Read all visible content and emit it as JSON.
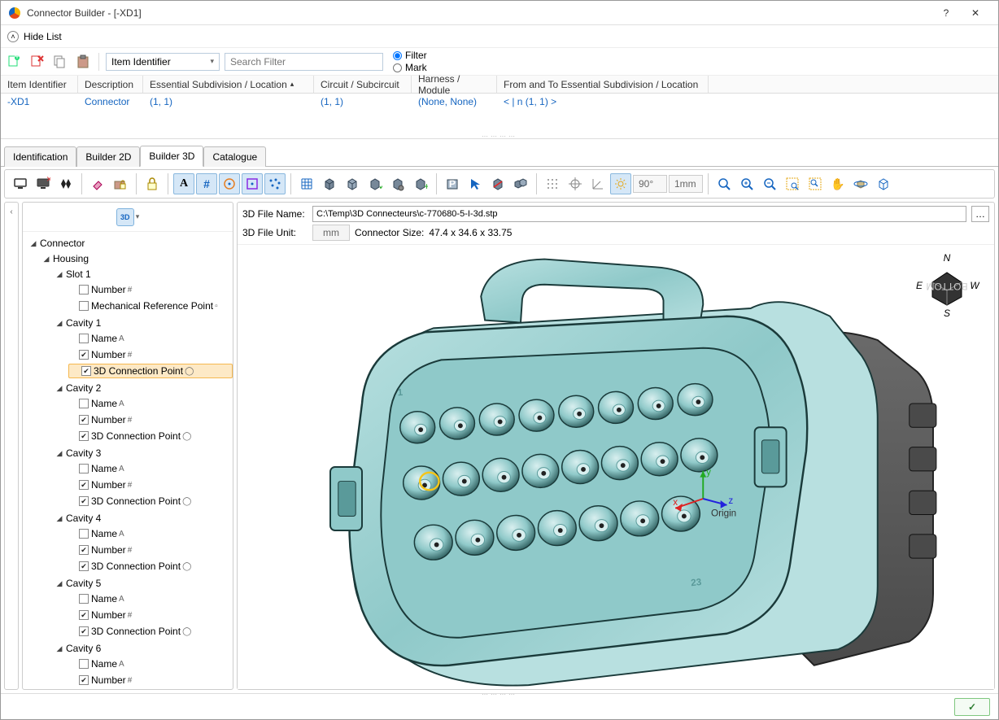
{
  "window": {
    "title": "Connector Builder - [-XD1]",
    "help_glyph": "?",
    "close_glyph": "✕"
  },
  "hide_list": {
    "label": "Hide List"
  },
  "toolbar1": {
    "dropdown_label": "Item Identifier",
    "search_placeholder": "Search Filter",
    "radio_filter": "Filter",
    "radio_mark": "Mark"
  },
  "table": {
    "columns": [
      "Item Identifier",
      "Description",
      "Essential Subdivision / Location",
      "Circuit / Subcircuit",
      "Harness / Module",
      "From and To Essential Subdivision / Location"
    ],
    "sort_indicator_col": 2,
    "row": {
      "id": "-XD1",
      "desc": "Connector",
      "ess": "(1, 1)",
      "circ": "(1, 1)",
      "harn": "(None, None)",
      "from": "<  | n (1, 1) >"
    }
  },
  "tabs": {
    "items": [
      "Identification",
      "Builder 2D",
      "Builder 3D",
      "Catalogue"
    ],
    "active_index": 2
  },
  "toolbar2": {
    "angle_text": "90°",
    "dist_text": "1mm"
  },
  "tree": {
    "root_label": "Connector",
    "housing_label": "Housing",
    "slot_label": "Slot 1",
    "number_label": "Number",
    "mech_ref_label": "Mechanical Reference Point",
    "name_label": "Name",
    "conn_point_label": "3D Connection Point",
    "cavity_prefix": "Cavity",
    "cavities": [
      1,
      2,
      3,
      4,
      5,
      6
    ],
    "selected_path": "cavity1_conn_point"
  },
  "viewer": {
    "file_name_label": "3D File Name:",
    "file_path": "C:\\Temp\\3D Connecteurs\\c-770680-5-I-3d.stp",
    "file_unit_label": "3D File Unit:",
    "file_unit_value": "mm",
    "size_label": "Connector Size:",
    "size_value": "47.4 x 34.6 x 33.75",
    "num_top": "1",
    "num_bottom": "23",
    "origin_label": "Origin",
    "compass": {
      "n": "N",
      "s": "S",
      "e": "E",
      "w": "W"
    },
    "colors": {
      "body_light": "#b8e0e0",
      "body_mid": "#8fc9c9",
      "body_dark": "#5a9a9a",
      "back_dark": "#4a4a4a",
      "back_mid": "#6a6a6a",
      "hole_dark": "#2a5a5a",
      "hole_inner": "#d8efef",
      "hole_pin": "#222222",
      "outline": "#1a3a3a"
    }
  },
  "footer": {
    "ok_glyph": "✓"
  }
}
